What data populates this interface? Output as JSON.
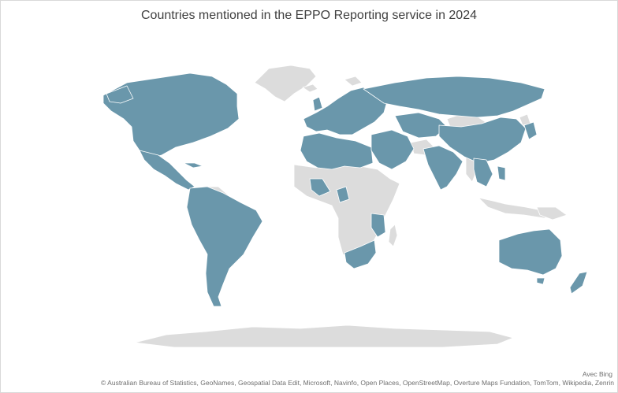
{
  "title": "Countries mentioned in the EPPO Reporting service in 2024",
  "legend_colors": {
    "mentioned": "#6a97ab",
    "not_mentioned": "#dcdcdc",
    "borders": "#ffffff"
  },
  "credits": {
    "provider": "Avec Bing",
    "attribution": "© Australian Bureau of Statistics, GeoNames, Geospatial Data Edit, Microsoft, Navinfo, Open Places, OpenStreetMap, Overture Maps Fundation, TomTom, Wikipedia, Zenrin"
  },
  "regions": {
    "mentioned": [
      "North America",
      "Central America",
      "South America (most)",
      "Europe",
      "North Africa",
      "West Africa",
      "Southern Africa",
      "Middle East",
      "Russia",
      "Central Asia",
      "South Asia",
      "China",
      "East Asia",
      "Southeast Asia",
      "Australia",
      "New Zealand"
    ],
    "not_mentioned": [
      "Greenland",
      "Central Africa",
      "Horn of Africa",
      "Antarctica",
      "Mongolia",
      "Papua New Guinea"
    ]
  }
}
